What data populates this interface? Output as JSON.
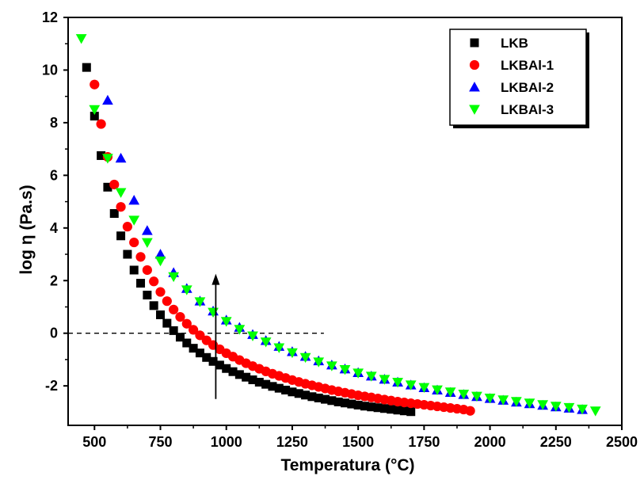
{
  "chart_data": {
    "type": "scatter",
    "title": "",
    "xlabel": "Temperatura (°C)",
    "ylabel": "log η (Pa.s)",
    "xlim": [
      400,
      2500
    ],
    "ylim": [
      -3.5,
      12
    ],
    "xticks": [
      500,
      750,
      1000,
      1250,
      1500,
      1750,
      2000,
      2250,
      2500
    ],
    "yticks": [
      -2,
      0,
      2,
      4,
      6,
      8,
      10,
      12
    ],
    "legend_position": "top-right",
    "grid": false,
    "reference_line": {
      "y": 0,
      "x_start": 400,
      "x_end": 1370,
      "style": "dashed"
    },
    "arrow": {
      "x": 960,
      "y_start": -2.5,
      "y_end": 2.2
    },
    "series": [
      {
        "name": "LKB",
        "marker": "square",
        "color": "#000000",
        "x": [
          470,
          500,
          525,
          550,
          575,
          600,
          625,
          650,
          675,
          700,
          725,
          750,
          775,
          800,
          825,
          850,
          875,
          900,
          925,
          950,
          975,
          1000,
          1025,
          1050,
          1075,
          1100,
          1125,
          1150,
          1175,
          1200,
          1225,
          1250,
          1275,
          1300,
          1325,
          1350,
          1375,
          1400,
          1425,
          1450,
          1475,
          1500,
          1525,
          1550,
          1575,
          1600,
          1625,
          1650,
          1675,
          1700
        ],
        "y": [
          10.1,
          8.25,
          6.75,
          5.55,
          4.55,
          3.7,
          3.0,
          2.4,
          1.9,
          1.45,
          1.05,
          0.7,
          0.38,
          0.1,
          -0.15,
          -0.37,
          -0.57,
          -0.75,
          -0.92,
          -1.07,
          -1.21,
          -1.34,
          -1.46,
          -1.57,
          -1.67,
          -1.77,
          -1.86,
          -1.94,
          -2.02,
          -2.09,
          -2.16,
          -2.23,
          -2.29,
          -2.35,
          -2.41,
          -2.46,
          -2.51,
          -2.56,
          -2.61,
          -2.65,
          -2.69,
          -2.73,
          -2.77,
          -2.8,
          -2.83,
          -2.86,
          -2.89,
          -2.92,
          -2.95,
          -2.98
        ]
      },
      {
        "name": "LKBAl-1",
        "marker": "circle",
        "color": "#ff0000",
        "x": [
          500,
          525,
          550,
          575,
          600,
          625,
          650,
          675,
          700,
          725,
          750,
          775,
          800,
          825,
          850,
          875,
          900,
          925,
          950,
          975,
          1000,
          1025,
          1050,
          1075,
          1100,
          1125,
          1150,
          1175,
          1200,
          1225,
          1250,
          1275,
          1300,
          1325,
          1350,
          1375,
          1400,
          1425,
          1450,
          1475,
          1500,
          1525,
          1550,
          1575,
          1600,
          1625,
          1650,
          1675,
          1700,
          1725,
          1750,
          1775,
          1800,
          1825,
          1850,
          1875,
          1900,
          1925
        ],
        "y": [
          9.45,
          7.95,
          6.7,
          5.65,
          4.8,
          4.05,
          3.45,
          2.9,
          2.4,
          1.97,
          1.57,
          1.22,
          0.9,
          0.62,
          0.36,
          0.13,
          -0.08,
          -0.27,
          -0.45,
          -0.61,
          -0.76,
          -0.89,
          -1.02,
          -1.14,
          -1.25,
          -1.35,
          -1.45,
          -1.54,
          -1.62,
          -1.7,
          -1.78,
          -1.85,
          -1.92,
          -1.98,
          -2.04,
          -2.1,
          -2.16,
          -2.21,
          -2.26,
          -2.31,
          -2.36,
          -2.4,
          -2.44,
          -2.48,
          -2.52,
          -2.56,
          -2.6,
          -2.63,
          -2.66,
          -2.69,
          -2.72,
          -2.75,
          -2.78,
          -2.81,
          -2.84,
          -2.87,
          -2.9,
          -2.95
        ]
      },
      {
        "name": "LKBAl-2",
        "marker": "triangle-up",
        "color": "#0000ff",
        "x": [
          550,
          600,
          650,
          700,
          750,
          800,
          850,
          900,
          950,
          1000,
          1050,
          1100,
          1150,
          1200,
          1250,
          1300,
          1350,
          1400,
          1450,
          1500,
          1550,
          1600,
          1650,
          1700,
          1750,
          1800,
          1850,
          1900,
          1950,
          2000,
          2050,
          2100,
          2150,
          2200,
          2250,
          2300,
          2350
        ],
        "y": [
          8.85,
          6.65,
          5.05,
          3.9,
          3.0,
          2.3,
          1.7,
          1.22,
          0.84,
          0.5,
          0.22,
          -0.05,
          -0.28,
          -0.5,
          -0.7,
          -0.88,
          -1.05,
          -1.21,
          -1.36,
          -1.5,
          -1.63,
          -1.75,
          -1.86,
          -1.97,
          -2.07,
          -2.16,
          -2.25,
          -2.33,
          -2.41,
          -2.48,
          -2.55,
          -2.62,
          -2.68,
          -2.74,
          -2.8,
          -2.85,
          -2.9
        ]
      },
      {
        "name": "LKBAl-3",
        "marker": "triangle-down",
        "color": "#00ff00",
        "x": [
          450,
          500,
          550,
          600,
          650,
          700,
          750,
          800,
          850,
          900,
          950,
          1000,
          1050,
          1100,
          1150,
          1200,
          1250,
          1300,
          1350,
          1400,
          1450,
          1500,
          1550,
          1600,
          1650,
          1700,
          1750,
          1800,
          1850,
          1900,
          1950,
          2000,
          2050,
          2100,
          2150,
          2200,
          2250,
          2300,
          2350,
          2400
        ],
        "y": [
          11.2,
          8.5,
          6.65,
          5.35,
          4.3,
          3.45,
          2.75,
          2.15,
          1.65,
          1.2,
          0.8,
          0.45,
          0.15,
          -0.1,
          -0.33,
          -0.55,
          -0.74,
          -0.92,
          -1.09,
          -1.24,
          -1.38,
          -1.51,
          -1.63,
          -1.75,
          -1.86,
          -1.96,
          -2.06,
          -2.15,
          -2.23,
          -2.31,
          -2.39,
          -2.46,
          -2.53,
          -2.59,
          -2.65,
          -2.71,
          -2.77,
          -2.82,
          -2.88,
          -2.95
        ]
      }
    ]
  }
}
